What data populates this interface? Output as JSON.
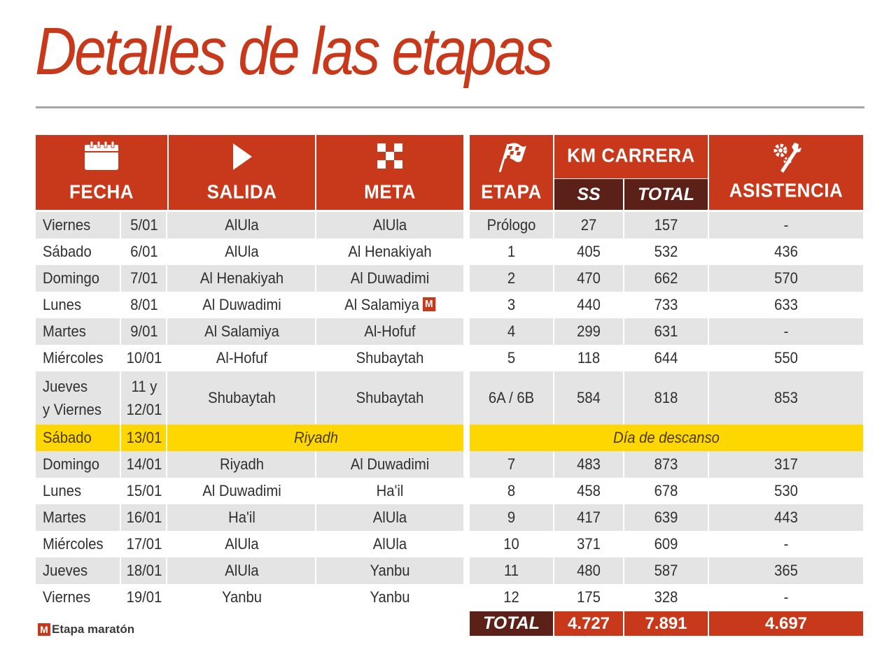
{
  "title": "Detalles de las etapas",
  "colors": {
    "accent": "#c8391b",
    "dark": "#5b2118",
    "rest_day": "#ffd700",
    "stripe": "#e4e4e4"
  },
  "headers": {
    "fecha": "FECHA",
    "salida": "SALIDA",
    "meta": "META",
    "etapa": "ETAPA",
    "km_carrera": "KM CARRERA",
    "ss": "SS",
    "total": "TOTAL",
    "asistencia": "ASISTENCIA",
    "icons": {
      "fecha": "calendar-icon",
      "salida": "play-icon",
      "meta": "checkered-square-icon",
      "etapa": "checkered-flag-icon",
      "asistencia": "wrench-gear-icon"
    }
  },
  "rows": [
    {
      "dia": "Viernes",
      "fecha": "5/01",
      "salida": "AlUla",
      "meta": "AlUla",
      "etapa": "Prólogo",
      "ss": "27",
      "total": "157",
      "asistencia": "-"
    },
    {
      "dia": "Sábado",
      "fecha": "6/01",
      "salida": "AlUla",
      "meta": "Al Henakiyah",
      "etapa": "1",
      "ss": "405",
      "total": "532",
      "asistencia": "436"
    },
    {
      "dia": "Domingo",
      "fecha": "7/01",
      "salida": "Al Henakiyah",
      "meta": "Al Duwadimi",
      "etapa": "2",
      "ss": "470",
      "total": "662",
      "asistencia": "570"
    },
    {
      "dia": "Lunes",
      "fecha": "8/01",
      "salida": "Al Duwadimi",
      "meta": "Al Salamiya",
      "marathon": "M",
      "etapa": "3",
      "ss": "440",
      "total": "733",
      "asistencia": "633"
    },
    {
      "dia": "Martes",
      "fecha": "9/01",
      "salida": "Al Salamiya",
      "meta": "Al-Hofuf",
      "etapa": "4",
      "ss": "299",
      "total": "631",
      "asistencia": "-"
    },
    {
      "dia": "Miércoles",
      "fecha": "10/01",
      "salida": "Al-Hofuf",
      "meta": "Shubaytah",
      "etapa": "5",
      "ss": "118",
      "total": "644",
      "asistencia": "550"
    },
    {
      "dia": "Jueves",
      "dia2": "y Viernes",
      "fecha": "11 y",
      "fecha2": "12/01",
      "salida": "Shubaytah",
      "meta": "Shubaytah",
      "etapa": "6A / 6B",
      "ss": "584",
      "total": "818",
      "asistencia": "853"
    },
    {
      "dia": "Sábado",
      "fecha": "13/01",
      "rest_place": "Riyadh",
      "rest_label": "Día de descanso"
    },
    {
      "dia": "Domingo",
      "fecha": "14/01",
      "salida": "Riyadh",
      "meta": "Al Duwadimi",
      "etapa": "7",
      "ss": "483",
      "total": "873",
      "asistencia": "317"
    },
    {
      "dia": "Lunes",
      "fecha": "15/01",
      "salida": "Al Duwadimi",
      "meta": "Ha'il",
      "etapa": "8",
      "ss": "458",
      "total": "678",
      "asistencia": "530"
    },
    {
      "dia": "Martes",
      "fecha": "16/01",
      "salida": "Ha'il",
      "meta": "AlUla",
      "etapa": "9",
      "ss": "417",
      "total": "639",
      "asistencia": "443"
    },
    {
      "dia": "Miércoles",
      "fecha": "17/01",
      "salida": "AlUla",
      "meta": "AlUla",
      "etapa": "10",
      "ss": "371",
      "total": "609",
      "asistencia": "-"
    },
    {
      "dia": "Jueves",
      "fecha": "18/01",
      "salida": "AlUla",
      "meta": "Yanbu",
      "etapa": "11",
      "ss": "480",
      "total": "587",
      "asistencia": "365"
    },
    {
      "dia": "Viernes",
      "fecha": "19/01",
      "salida": "Yanbu",
      "meta": "Yanbu",
      "etapa": "12",
      "ss": "175",
      "total": "328",
      "asistencia": "-"
    }
  ],
  "totals": {
    "label": "TOTAL",
    "ss": "4.727",
    "total": "7.891",
    "asistencia": "4.697"
  },
  "legend": {
    "badge": "M",
    "text": "Etapa maratón"
  }
}
